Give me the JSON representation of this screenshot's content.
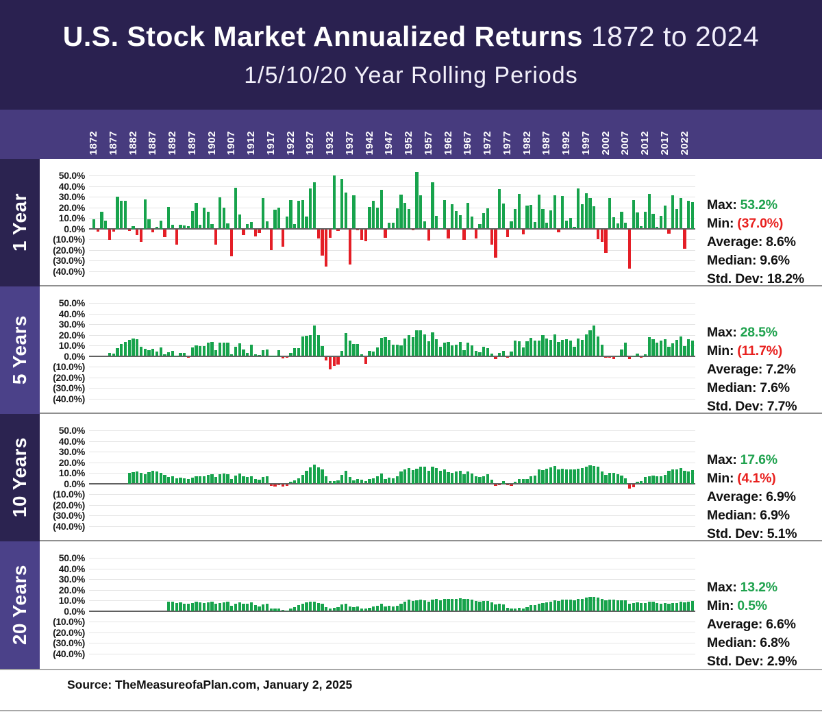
{
  "header": {
    "title_bold": "U.S. Stock Market Annualized Returns",
    "title_range": " 1872 to 2024",
    "subtitle": "1/5/10/20 Year Rolling Periods"
  },
  "footer": {
    "source": "Source: TheMeasureofaPlan.com, January 2, 2025"
  },
  "colors": {
    "positive": "#17A34C",
    "negative": "#E41E26",
    "header_bg": "#2A2150",
    "axis_strip_bg": "#473B7E",
    "sidebar_dark": "#2B2350",
    "sidebar_light": "#4B4189",
    "grid": "#E4E4E4",
    "zero_line": "#606060"
  },
  "x_axis": {
    "year_start": 1872,
    "year_end": 2024,
    "tick_years": [
      1872,
      1877,
      1882,
      1887,
      1892,
      1897,
      1902,
      1907,
      1912,
      1917,
      1922,
      1927,
      1932,
      1937,
      1942,
      1947,
      1952,
      1957,
      1962,
      1967,
      1972,
      1977,
      1982,
      1987,
      1992,
      1997,
      2002,
      2007,
      2012,
      2017,
      2022
    ]
  },
  "y_axis": {
    "tick_labels": [
      "50.0%",
      "40.0%",
      "30.0%",
      "20.0%",
      "10.0%",
      "0.0%",
      "(10.0%)",
      "(20.0%)",
      "(30.0%)",
      "(40.0%)"
    ],
    "max": 50,
    "min": -40,
    "grid": true
  },
  "chart_data": [
    {
      "type": "bar",
      "id": "1-year",
      "row_label": "1 Year",
      "title": "1 Year rolling annualized returns",
      "start_year": 1872,
      "sidebar_color": "#2B2350",
      "stats": {
        "max": 53.2,
        "min": -37.0,
        "average": 8.6,
        "median": 9.6,
        "std_dev": 18.2
      },
      "stats_display": [
        {
          "label": "Max:",
          "value": "53.2%",
          "color": "green"
        },
        {
          "label": "Min:",
          "value": "(37.0%)",
          "color": "red"
        },
        {
          "label": "Average:",
          "value": "8.6%",
          "color": "black"
        },
        {
          "label": "Median:",
          "value": "9.6%",
          "color": "black"
        },
        {
          "label": "Std. Dev:",
          "value": "18.2%",
          "color": "black"
        }
      ],
      "values": [
        8.5,
        -2.5,
        15.5,
        7.5,
        -10,
        -2,
        30,
        26,
        26,
        -1.5,
        2.5,
        -5.5,
        -12,
        27.5,
        9,
        -3,
        1.5,
        7.5,
        -7.5,
        20.5,
        3.5,
        -14.5,
        3.5,
        3,
        2,
        16.5,
        24,
        3.5,
        19.5,
        16,
        4,
        -14.5,
        29.5,
        19.5,
        5,
        -25.5,
        38.5,
        13.5,
        -5.5,
        4.5,
        6,
        -7,
        -3.5,
        29,
        7,
        -19.5,
        17.5,
        19.5,
        -16.5,
        11,
        27,
        4.5,
        26,
        27,
        11.6,
        37.5,
        43.6,
        -8.4,
        -24.9,
        -35,
        -8.2,
        50,
        -1.4,
        46.7,
        33.9,
        -33,
        31.1,
        -0.4,
        -9.8,
        -11.6,
        20.3,
        25.9,
        19.8,
        36.4,
        -8.1,
        5.7,
        5.5,
        18.8,
        31.7,
        24,
        18.4,
        -1,
        53.2,
        31.6,
        6.6,
        -10.8,
        43.4,
        12,
        0.5,
        26.9,
        -8.7,
        22.8,
        16.5,
        12.5,
        -10.1,
        24,
        11.1,
        -8.5,
        4,
        14.3,
        19,
        -14.7,
        -26.5,
        37.2,
        23.8,
        -7.2,
        6.6,
        18.4,
        32.4,
        -4.9,
        21.4,
        22.5,
        6.3,
        32.2,
        18.5,
        5.2,
        16.8,
        31.5,
        -3.1,
        30.5,
        7.6,
        10.1,
        1.3,
        37.6,
        23,
        33.4,
        28.6,
        21,
        -9.1,
        -11.9,
        -22.1,
        28.7,
        10.9,
        4.9,
        15.8,
        5.5,
        -37,
        26.5,
        15.1,
        2.1,
        16,
        32.4,
        13.7,
        1.4,
        12,
        21.8,
        -4.4,
        31.5,
        18.4,
        28.7,
        -18.1,
        26.3,
        25
      ]
    },
    {
      "type": "bar",
      "id": "5-years",
      "row_label": "5 Years",
      "title": "5 Year rolling annualized returns",
      "start_year": 1876,
      "sidebar_color": "#4B4189",
      "stats": {
        "max": 28.5,
        "min": -11.7,
        "average": 7.2,
        "median": 7.6,
        "std_dev": 7.7
      },
      "stats_display": [
        {
          "label": "Max:",
          "value": "28.5%",
          "color": "green"
        },
        {
          "label": "Min:",
          "value": "(11.7%)",
          "color": "red"
        },
        {
          "label": "Average:",
          "value": "7.2%",
          "color": "black"
        },
        {
          "label": "Median:",
          "value": "7.6%",
          "color": "black"
        },
        {
          "label": "Std. Dev:",
          "value": "7.7%",
          "color": "black"
        }
      ],
      "values": [
        3,
        2,
        7.5,
        11,
        13.5,
        15,
        16.5,
        15.5,
        9,
        7,
        5.5,
        6.5,
        4,
        8,
        1.5,
        3.5,
        5,
        0.5,
        2.8,
        3.2,
        -0.5,
        8,
        9.8,
        9.4,
        9.3,
        12.9,
        13.4,
        5.2,
        12.3,
        12.4,
        12.5,
        1.4,
        8.4,
        11.9,
        6.1,
        2.6,
        10.8,
        1.9,
        0.7,
        5.3,
        5.9,
        0.2,
        0.3,
        5.6,
        -1.3,
        -1,
        3,
        7.1,
        7.6,
        18.4,
        18.8,
        19.4,
        28.5,
        20,
        9.5,
        -3.5,
        -11.7,
        -9,
        -7.5,
        5,
        21.5,
        14.3,
        11.5,
        11.4,
        1.5,
        -6.5,
        4.6,
        4,
        8.1,
        17,
        17.9,
        14.9,
        10.9,
        10.7,
        10,
        16.7,
        19.4,
        17.9,
        23.9,
        23.9,
        20.2,
        13.6,
        22.3,
        15.9,
        8.9,
        12.8,
        13.3,
        10,
        10.9,
        13.2,
        5.7,
        12.4,
        10.2,
        5,
        3.4,
        8.4,
        7.5,
        2,
        -2.4,
        3.2,
        4.9,
        -0.3,
        4.3,
        14.8,
        14,
        8.1,
        14.1,
        17.3,
        14.8,
        14.7,
        19.9,
        16.5,
        15.4,
        20.4,
        13.2,
        15.4,
        15.9,
        14.5,
        8.7,
        16.6,
        15.2,
        20.3,
        24.1,
        28.5,
        18.3,
        10.7,
        -0.6,
        -0.6,
        -2.3,
        0.5,
        6.2,
        12.8,
        -2.2,
        0.4,
        2.3,
        -0.2,
        1.7,
        17.9,
        15.5,
        12.6,
        14.7,
        15.8,
        8.5,
        11.7,
        15.2,
        18.5,
        9.4,
        15.7,
        14.5
      ]
    },
    {
      "type": "bar",
      "id": "10-years",
      "row_label": "10 Years",
      "title": "10 Year rolling annualized returns",
      "start_year": 1881,
      "sidebar_color": "#2B2350",
      "stats": {
        "max": 17.6,
        "min": -4.1,
        "average": 6.9,
        "median": 6.9,
        "std_dev": 5.1
      },
      "stats_display": [
        {
          "label": "Max:",
          "value": "17.6%",
          "color": "green"
        },
        {
          "label": "Min:",
          "value": "(4.1%)",
          "color": "red"
        },
        {
          "label": "Average:",
          "value": "6.9%",
          "color": "black"
        },
        {
          "label": "Median:",
          "value": "6.9%",
          "color": "black"
        },
        {
          "label": "Std. Dev:",
          "value": "5.1%",
          "color": "black"
        }
      ],
      "values": [
        10,
        10.5,
        11,
        10,
        9,
        10.5,
        12,
        11,
        10,
        8,
        6,
        7,
        5,
        5.5,
        5,
        4,
        5.5,
        7,
        6.5,
        7,
        8,
        9,
        6,
        8.5,
        9.5,
        9,
        4,
        7.5,
        9.5,
        6.5,
        6,
        7,
        4.5,
        3.5,
        6,
        6.5,
        -1.5,
        -2,
        -1,
        -2.5,
        -1.5,
        1.5,
        3,
        5,
        8,
        12,
        15,
        17.6,
        15,
        13,
        7,
        2,
        2.5,
        3,
        8,
        12,
        6,
        3,
        4,
        3.5,
        2,
        4,
        5,
        7,
        9.5,
        4.5,
        5.5,
        5,
        7,
        11,
        13,
        14.5,
        12.5,
        14,
        16,
        15.5,
        12,
        15.5,
        14.5,
        12,
        13,
        10.5,
        10,
        11,
        12,
        8.5,
        11.5,
        9.5,
        7,
        6,
        6.5,
        8.5,
        3.5,
        -1.5,
        -0.5,
        2.5,
        -0.5,
        -1.5,
        1.5,
        4.5,
        4,
        4.5,
        7,
        7.5,
        13,
        12.5,
        14,
        15,
        16.5,
        13.5,
        14,
        13.5,
        13,
        13,
        14,
        14.5,
        16,
        17,
        16.5,
        15.5,
        11,
        8,
        10,
        10,
        8.5,
        7.5,
        5,
        -4.1,
        -3,
        1.5,
        2.5,
        6,
        6.5,
        7.5,
        7,
        6.5,
        8,
        12,
        13,
        13.5,
        14.5,
        12,
        11.5,
        12.5
      ]
    },
    {
      "type": "bar",
      "id": "20-years",
      "row_label": "20 Years",
      "title": "20 Year rolling annualized returns",
      "start_year": 1891,
      "sidebar_color": "#4B4189",
      "stats": {
        "max": 13.2,
        "min": 0.5,
        "average": 6.6,
        "median": 6.8,
        "std_dev": 2.9
      },
      "stats_display": [
        {
          "label": "Max:",
          "value": "13.2%",
          "color": "green"
        },
        {
          "label": "Min:",
          "value": "0.5%",
          "color": "green"
        },
        {
          "label": "Average:",
          "value": "6.6%",
          "color": "black"
        },
        {
          "label": "Median:",
          "value": "6.8%",
          "color": "black"
        },
        {
          "label": "Std. Dev:",
          "value": "2.9%",
          "color": "black"
        }
      ],
      "values": [
        8.5,
        9,
        7.5,
        8,
        7,
        6.5,
        7.5,
        8.5,
        8,
        7.5,
        8,
        8.5,
        6.5,
        7.5,
        8,
        9,
        5,
        7,
        8,
        7,
        7,
        8,
        5.5,
        4.5,
        6,
        6.5,
        2,
        2.5,
        2.5,
        0.8,
        0.5,
        2,
        3.5,
        5.5,
        7,
        8,
        8.5,
        8.5,
        7.5,
        7,
        3.5,
        2,
        3,
        3.5,
        6,
        6.5,
        4,
        3.5,
        4,
        2.5,
        2,
        3,
        4,
        5,
        7,
        4.5,
        5,
        4,
        5,
        7,
        9,
        10.5,
        9.5,
        10,
        10.5,
        10,
        9,
        10.5,
        11,
        10,
        11.5,
        11,
        11.5,
        11.5,
        12,
        11,
        11.5,
        10.5,
        9.5,
        9,
        9.5,
        9.5,
        8,
        6,
        6.5,
        6,
        3,
        2,
        2,
        3,
        2.5,
        3.5,
        5.5,
        5.5,
        6.5,
        7.5,
        8,
        8.5,
        10,
        9.5,
        10.5,
        10.5,
        10.5,
        10,
        11,
        11.5,
        12.5,
        13,
        13.2,
        12.5,
        11.5,
        10,
        10.5,
        10.5,
        10,
        10,
        10,
        7,
        7.5,
        8,
        7.5,
        7.5,
        8.5,
        8.5,
        7.5,
        7,
        7.5,
        7,
        7.5,
        7.5,
        8.5,
        8,
        9,
        9.5
      ]
    }
  ]
}
